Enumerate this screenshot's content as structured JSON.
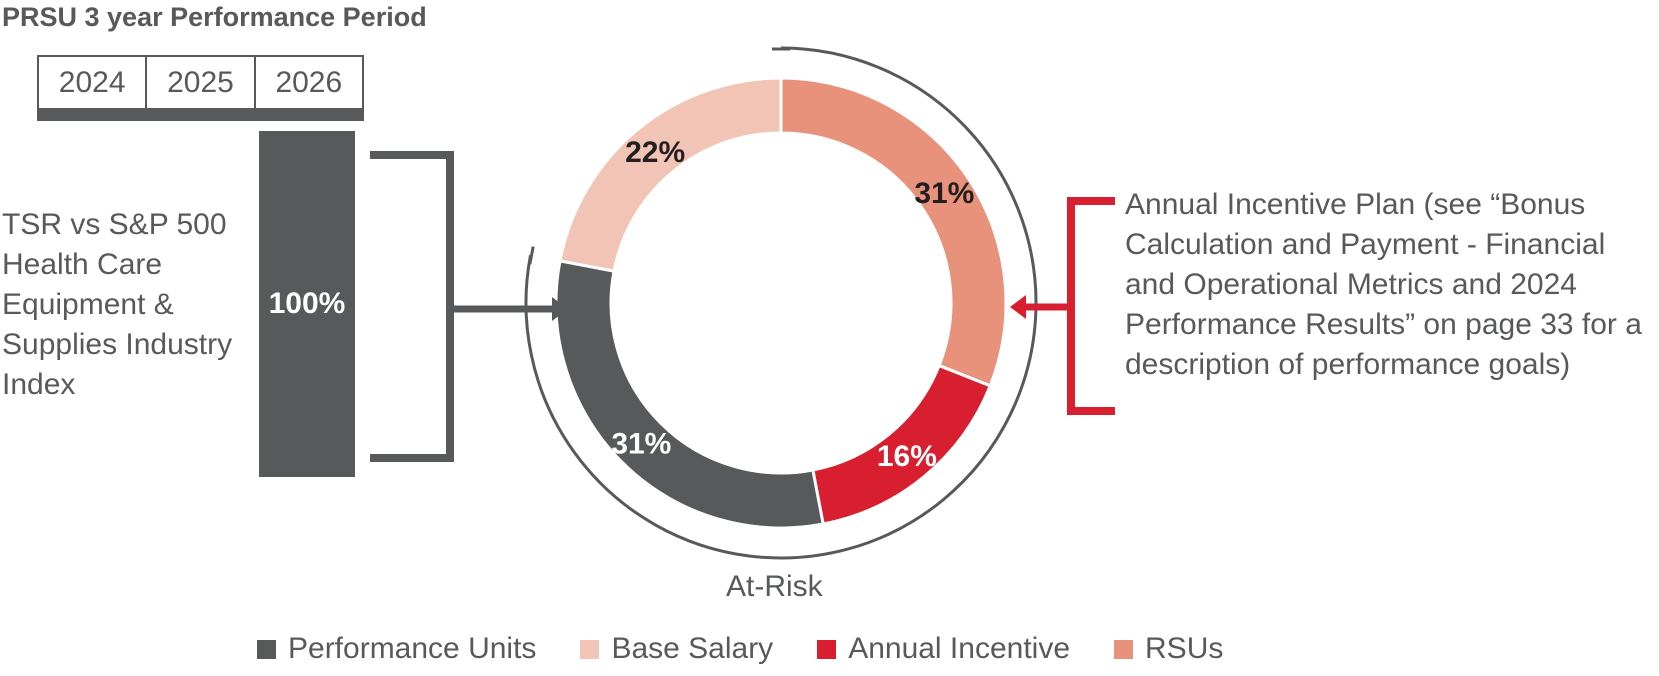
{
  "chart_data": {
    "type": "pie",
    "donut": true,
    "title": "PRSU 3 year Performance Period",
    "slices": [
      {
        "name": "RSUs",
        "label": "31%",
        "value": 31,
        "color": "#e8927c"
      },
      {
        "name": "Annual Incentive",
        "label": "16%",
        "value": 16,
        "color": "#d71f2f"
      },
      {
        "name": "Performance Units",
        "label": "31%",
        "value": 31,
        "color": "#58595b"
      },
      {
        "name": "Base Salary",
        "label": "22%",
        "value": 22,
        "color": "#f2c4b6"
      }
    ],
    "legend": [
      {
        "label": "Performance Units",
        "color": "#58595b"
      },
      {
        "label": "Base Salary",
        "color": "#f2c4b6"
      },
      {
        "label": "Annual Incentive",
        "color": "#d71f2f"
      },
      {
        "label": "RSUs",
        "color": "#e8927c"
      }
    ],
    "annotations": {
      "at_risk": "At-Risk",
      "prsu_bar_value": "100%",
      "prsu_years": [
        "2024",
        "2025",
        "2026"
      ],
      "left_description": "TSR vs S&P 500 Health Care Equipment & Supplies Industry Index",
      "right_description": "Annual Incentive Plan (see “Bonus Calculation and Payment - Financial and Operational Metrics and 2024 Performance Results” on page 33 for a description of performance goals)"
    }
  }
}
